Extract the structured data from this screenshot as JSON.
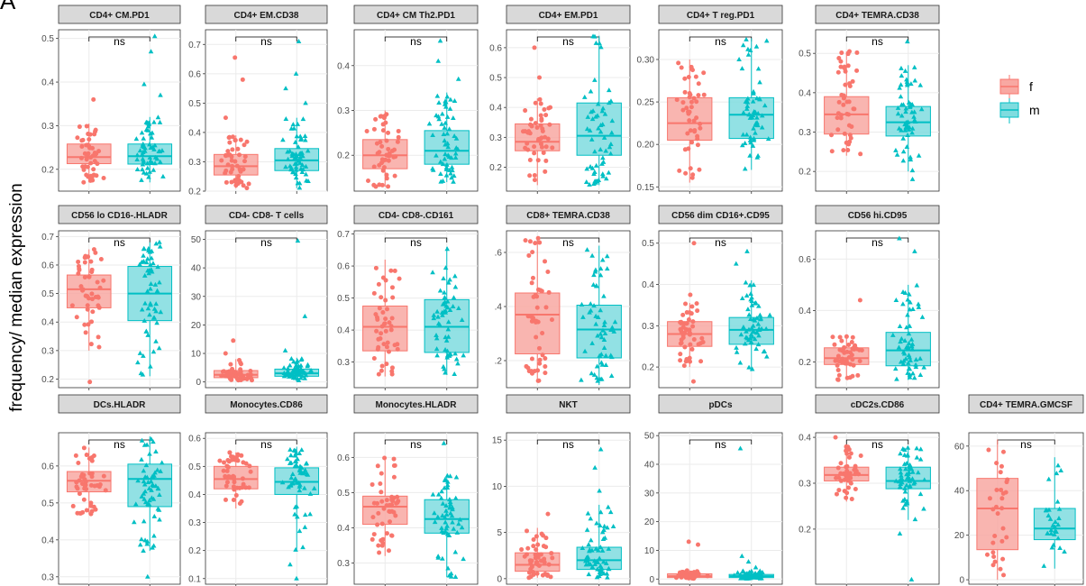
{
  "figure": {
    "panel_letter": "A",
    "ylabel": "frequency/ median expression",
    "legend": {
      "title": "",
      "items": [
        {
          "label": "f",
          "color": "#F8766D"
        },
        {
          "label": "m",
          "color": "#00BFC4"
        }
      ]
    },
    "annotation": "ns",
    "colors": {
      "f_fill": "#F8A8A2",
      "f_line": "#F8766D",
      "m_fill": "#7FDCDF",
      "m_line": "#00BFC4",
      "strip": "#D9D9D9",
      "grid": "#EBEBEB"
    }
  },
  "chart_data": [
    {
      "type": "box",
      "title": "CD4+ CM.PD1",
      "ylim": [
        0.15,
        0.52
      ],
      "yticks": [
        0.2,
        0.3,
        0.4,
        0.5
      ],
      "ytick_labels": [
        "0.2",
        "0.3",
        "0.4",
        "0.5"
      ],
      "f": {
        "q1": 0.213,
        "median": 0.228,
        "q3": 0.258,
        "lo": 0.17,
        "hi": 0.305,
        "n": 48,
        "outliers": [
          0.36
        ]
      },
      "m": {
        "q1": 0.212,
        "median": 0.23,
        "q3": 0.258,
        "lo": 0.17,
        "hi": 0.32,
        "n": 58,
        "outliers": [
          0.37,
          0.395,
          0.47,
          0.505
        ]
      }
    },
    {
      "type": "box",
      "title": "CD4+ EM.CD38",
      "ylim": [
        0.2,
        0.75
      ],
      "yticks": [
        0.2,
        0.3,
        0.4,
        0.5,
        0.6,
        0.7
      ],
      "ytick_labels": [
        "0.2",
        "0.3",
        "0.4",
        "0.5",
        "0.6",
        "0.7"
      ],
      "f": {
        "q1": 0.255,
        "median": 0.285,
        "q3": 0.325,
        "lo": 0.21,
        "hi": 0.39,
        "n": 48,
        "outliers": [
          0.45,
          0.58,
          0.655
        ]
      },
      "m": {
        "q1": 0.27,
        "median": 0.305,
        "q3": 0.345,
        "lo": 0.21,
        "hi": 0.45,
        "n": 58,
        "outliers": [
          0.5,
          0.55,
          0.6,
          0.71
        ]
      }
    },
    {
      "type": "box",
      "title": "CD4+ CM Th2.PD1",
      "ylim": [
        0.12,
        0.48
      ],
      "yticks": [
        0.2,
        0.3,
        0.4
      ],
      "ytick_labels": [
        "0.2",
        "0.3",
        "0.4"
      ],
      "f": {
        "q1": 0.17,
        "median": 0.2,
        "q3": 0.235,
        "lo": 0.13,
        "hi": 0.3,
        "n": 48,
        "outliers": []
      },
      "m": {
        "q1": 0.18,
        "median": 0.21,
        "q3": 0.255,
        "lo": 0.14,
        "hi": 0.34,
        "n": 58,
        "outliers": [
          0.37,
          0.41,
          0.455
        ]
      }
    },
    {
      "type": "box",
      "title": "CD4+ EM.PD1",
      "ylim": [
        0.12,
        0.66
      ],
      "yticks": [
        0.2,
        0.3,
        0.4,
        0.5,
        0.6
      ],
      "ytick_labels": [
        "0.2",
        "0.3",
        "0.4",
        "0.5",
        "0.6"
      ],
      "f": {
        "q1": 0.255,
        "median": 0.285,
        "q3": 0.345,
        "lo": 0.14,
        "hi": 0.43,
        "n": 48,
        "outliers": [
          0.5,
          0.6
        ]
      },
      "m": {
        "q1": 0.24,
        "median": 0.305,
        "q3": 0.415,
        "lo": 0.14,
        "hi": 0.64,
        "n": 58,
        "outliers": []
      }
    },
    {
      "type": "box",
      "title": "CD4+ T reg.PD1",
      "ylim": [
        0.145,
        0.335
      ],
      "yticks": [
        0.15,
        0.2,
        0.25,
        0.3
      ],
      "ytick_labels": [
        "0.15",
        "0.20",
        "0.25",
        "0.30"
      ],
      "f": {
        "q1": 0.205,
        "median": 0.225,
        "q3": 0.255,
        "lo": 0.155,
        "hi": 0.3,
        "n": 48,
        "outliers": []
      },
      "m": {
        "q1": 0.207,
        "median": 0.235,
        "q3": 0.255,
        "lo": 0.17,
        "hi": 0.325,
        "n": 58,
        "outliers": []
      }
    },
    {
      "type": "box",
      "title": "CD4+ TEMRA.CD38",
      "ylim": [
        0.15,
        0.56
      ],
      "yticks": [
        0.2,
        0.3,
        0.4,
        0.5
      ],
      "ytick_labels": [
        "0.2",
        "0.3",
        "0.4",
        "0.5"
      ],
      "f": {
        "q1": 0.295,
        "median": 0.345,
        "q3": 0.39,
        "lo": 0.24,
        "hi": 0.505,
        "n": 48,
        "outliers": []
      },
      "m": {
        "q1": 0.29,
        "median": 0.325,
        "q3": 0.365,
        "lo": 0.2,
        "hi": 0.47,
        "n": 58,
        "outliers": [
          0.18,
          0.53
        ]
      }
    },
    {
      "type": "box",
      "title": "CD56 lo CD16-.HLADR",
      "ylim": [
        0.17,
        0.72
      ],
      "yticks": [
        0.2,
        0.3,
        0.4,
        0.5,
        0.6,
        0.7
      ],
      "ytick_labels": [
        "0.2",
        "0.3",
        "0.4",
        "0.5",
        "0.6",
        "0.7"
      ],
      "f": {
        "q1": 0.45,
        "median": 0.515,
        "q3": 0.565,
        "lo": 0.3,
        "hi": 0.655,
        "n": 48,
        "outliers": [
          0.19
        ]
      },
      "m": {
        "q1": 0.405,
        "median": 0.5,
        "q3": 0.595,
        "lo": 0.21,
        "hi": 0.68,
        "n": 58,
        "outliers": []
      }
    },
    {
      "type": "box",
      "title": "CD4- CD8- T cells",
      "ylim": [
        -2,
        53
      ],
      "yticks": [
        0,
        10,
        20,
        30,
        40,
        50
      ],
      "ytick_labels": [
        "0",
        "10",
        "20",
        "30",
        "40",
        "50"
      ],
      "f": {
        "q1": 1.5,
        "median": 2.5,
        "q3": 4.0,
        "lo": 0.5,
        "hi": 8.0,
        "n": 48,
        "outliers": [
          10,
          14.5
        ]
      },
      "m": {
        "q1": 2.0,
        "median": 3.0,
        "q3": 4.5,
        "lo": 0.5,
        "hi": 8.5,
        "n": 58,
        "outliers": [
          11,
          23,
          49.5
        ]
      }
    },
    {
      "type": "box",
      "title": "CD4- CD8-.CD161",
      "ylim": [
        0.22,
        0.71
      ],
      "yticks": [
        0.3,
        0.4,
        0.5,
        0.6,
        0.7
      ],
      "ytick_labels": [
        "0.3",
        "0.4",
        "0.5",
        "0.6",
        "0.7"
      ],
      "f": {
        "q1": 0.335,
        "median": 0.41,
        "q3": 0.475,
        "lo": 0.255,
        "hi": 0.62,
        "n": 48,
        "outliers": []
      },
      "m": {
        "q1": 0.33,
        "median": 0.41,
        "q3": 0.495,
        "lo": 0.26,
        "hi": 0.66,
        "n": 58,
        "outliers": []
      }
    },
    {
      "type": "box",
      "title": "CD8+ TEMRA.CD38",
      "ylim": [
        0.1,
        0.68
      ],
      "yticks": [
        0.2,
        0.4,
        0.6
      ],
      "ytick_labels": [
        ".2",
        ".4",
        ".6"
      ],
      "f": {
        "q1": 0.225,
        "median": 0.37,
        "q3": 0.45,
        "lo": 0.12,
        "hi": 0.66,
        "n": 48,
        "outliers": []
      },
      "m": {
        "q1": 0.21,
        "median": 0.315,
        "q3": 0.405,
        "lo": 0.11,
        "hi": 0.625,
        "n": 58,
        "outliers": []
      }
    },
    {
      "type": "box",
      "title": "CD56 dim CD16+.CD95",
      "ylim": [
        0.15,
        0.53
      ],
      "yticks": [
        0.2,
        0.3,
        0.4,
        0.5
      ],
      "ytick_labels": [
        "0.2",
        "0.3",
        "0.4",
        "0.5"
      ],
      "f": {
        "q1": 0.25,
        "median": 0.28,
        "q3": 0.31,
        "lo": 0.2,
        "hi": 0.355,
        "n": 48,
        "outliers": [
          0.165,
          0.375,
          0.5
        ]
      },
      "m": {
        "q1": 0.255,
        "median": 0.29,
        "q3": 0.32,
        "lo": 0.19,
        "hi": 0.41,
        "n": 58,
        "outliers": [
          0.45,
          0.48
        ]
      }
    },
    {
      "type": "box",
      "title": "CD56 hi.CD95",
      "ylim": [
        0.1,
        0.71
      ],
      "yticks": [
        0.2,
        0.4,
        0.6
      ],
      "ytick_labels": [
        "0.2",
        "0.4",
        "0.6"
      ],
      "f": {
        "q1": 0.19,
        "median": 0.215,
        "q3": 0.255,
        "lo": 0.13,
        "hi": 0.3,
        "n": 48,
        "outliers": [
          0.44
        ]
      },
      "m": {
        "q1": 0.185,
        "median": 0.245,
        "q3": 0.315,
        "lo": 0.13,
        "hi": 0.5,
        "n": 58,
        "outliers": [
          0.63,
          0.68
        ]
      }
    },
    {
      "type": "box",
      "title": "DCs.HLADR",
      "ylim": [
        0.28,
        0.69
      ],
      "yticks": [
        0.3,
        0.4,
        0.5,
        0.6
      ],
      "ytick_labels": [
        "0.3",
        "0.4",
        "0.5",
        "0.6"
      ],
      "f": {
        "q1": 0.53,
        "median": 0.56,
        "q3": 0.585,
        "lo": 0.47,
        "hi": 0.65,
        "n": 48,
        "outliers": []
      },
      "m": {
        "q1": 0.49,
        "median": 0.565,
        "q3": 0.605,
        "lo": 0.37,
        "hi": 0.68,
        "n": 58,
        "outliers": [
          0.3
        ]
      }
    },
    {
      "type": "box",
      "title": "Monocytes.CD86",
      "ylim": [
        0.08,
        0.62
      ],
      "yticks": [
        0.1,
        0.2,
        0.3,
        0.4,
        0.5,
        0.6
      ],
      "ytick_labels": [
        "0.1",
        "0.2",
        "0.3",
        "0.4",
        "0.5",
        "0.6"
      ],
      "f": {
        "q1": 0.42,
        "median": 0.455,
        "q3": 0.5,
        "lo": 0.35,
        "hi": 0.55,
        "n": 48,
        "outliers": []
      },
      "m": {
        "q1": 0.4,
        "median": 0.445,
        "q3": 0.495,
        "lo": 0.2,
        "hi": 0.57,
        "n": 58,
        "outliers": [
          0.15,
          0.1
        ]
      }
    },
    {
      "type": "box",
      "title": "Monocytes.HLADR",
      "ylim": [
        0.24,
        0.67
      ],
      "yticks": [
        0.3,
        0.4,
        0.5,
        0.6
      ],
      "ytick_labels": [
        "0.3",
        "0.4",
        "0.5",
        "0.6"
      ],
      "f": {
        "q1": 0.41,
        "median": 0.46,
        "q3": 0.49,
        "lo": 0.32,
        "hi": 0.6,
        "n": 48,
        "outliers": []
      },
      "m": {
        "q1": 0.385,
        "median": 0.425,
        "q3": 0.48,
        "lo": 0.26,
        "hi": 0.55,
        "n": 58,
        "outliers": [
          0.64
        ]
      }
    },
    {
      "type": "box",
      "title": "NKT",
      "ylim": [
        -0.6,
        15.8
      ],
      "yticks": [
        0,
        5,
        10,
        15
      ],
      "ytick_labels": [
        "0",
        "5",
        "10",
        "15"
      ],
      "f": {
        "q1": 0.8,
        "median": 1.5,
        "q3": 2.8,
        "lo": 0.1,
        "hi": 5.5,
        "n": 48,
        "outliers": [
          7.0
        ]
      },
      "m": {
        "q1": 1.0,
        "median": 2.0,
        "q3": 3.4,
        "lo": 0.1,
        "hi": 8.0,
        "n": 58,
        "outliers": [
          9.5,
          12,
          14
        ]
      }
    },
    {
      "type": "box",
      "title": "pDCs",
      "ylim": [
        -1.8,
        51
      ],
      "yticks": [
        0,
        10,
        20,
        30,
        40,
        50
      ],
      "ytick_labels": [
        "0",
        "10",
        "20",
        "30",
        "40",
        "50"
      ],
      "f": {
        "q1": 0.5,
        "median": 1.0,
        "q3": 1.8,
        "lo": 0.1,
        "hi": 3.0,
        "n": 48,
        "outliers": [
          12,
          13
        ]
      },
      "m": {
        "q1": 0.5,
        "median": 1.0,
        "q3": 1.6,
        "lo": 0.1,
        "hi": 2.8,
        "n": 58,
        "outliers": [
          4,
          6,
          8,
          45.5
        ]
      }
    },
    {
      "type": "box",
      "title": "cDC2s.CD86",
      "ylim": [
        0.08,
        0.41
      ],
      "yticks": [
        0.2,
        0.3,
        0.4
      ],
      "ytick_labels": [
        "0.2",
        "0.3",
        "0.4"
      ],
      "f": {
        "q1": 0.305,
        "median": 0.318,
        "q3": 0.335,
        "lo": 0.26,
        "hi": 0.38,
        "n": 48,
        "outliers": [
          0.4
        ]
      },
      "m": {
        "q1": 0.288,
        "median": 0.305,
        "q3": 0.335,
        "lo": 0.22,
        "hi": 0.38,
        "n": 58,
        "outliers": [
          0.19,
          0.09
        ]
      }
    },
    {
      "type": "box",
      "title": "CD4+ TEMRA.GMCSF",
      "ylim": [
        -2,
        66
      ],
      "yticks": [
        0,
        20,
        40,
        60
      ],
      "ytick_labels": [
        "0",
        "20",
        "40",
        "60"
      ],
      "f": {
        "q1": 13.5,
        "median": 32,
        "q3": 45.5,
        "lo": 0,
        "hi": 63,
        "n": 30,
        "outliers": []
      },
      "m": {
        "q1": 18,
        "median": 23,
        "q3": 32,
        "lo": 5,
        "hi": 55,
        "n": 30,
        "outliers": []
      }
    }
  ]
}
